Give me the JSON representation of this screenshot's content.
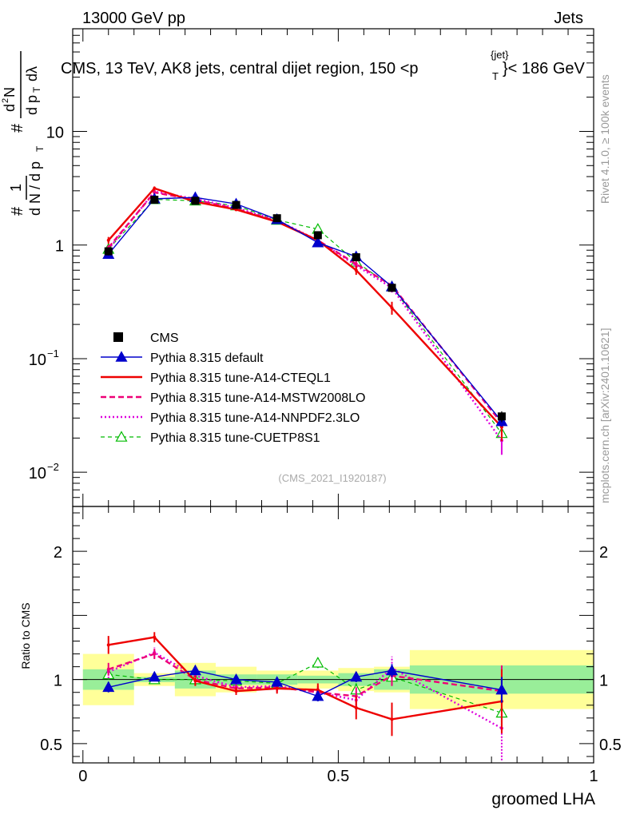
{
  "header": {
    "energy_label": "13000 GeV pp",
    "category_label": "Jets",
    "title_main": "CMS, 13 TeV, AK8 jets, central dijet region, 150 <p",
    "title_sup": "{jet}",
    "title_sub": "T",
    "title_tail": "}< 186 GeV",
    "side_label_top": "Rivet 4.1.0, ≥ 100k events",
    "side_label_bottom": "mcplots.cern.ch [arXiv:2401.10621]",
    "analysis_id": "(CMS_2021_I1920187)"
  },
  "colors": {
    "data": "#000000",
    "default": "#0000cc",
    "cteql1": "#ee0000",
    "mstw": "#ee0077",
    "nnpdf": "#dd00dd",
    "cuetp": "#00bb00",
    "band_inner": "#99ee99",
    "band_outer": "#ffff99"
  },
  "chart_data": {
    "type": "line",
    "xlabel": "groomed LHA",
    "ylabel_main": "1/(dN/dp_T) d^2N/(dp_T dλ)",
    "ylabel_ratio": "Ratio to CMS",
    "xlim": [
      -0.02,
      1.0
    ],
    "ylim_main": [
      0.005,
      80
    ],
    "ylim_ratio": [
      0.35,
      2.35
    ],
    "yscale_main": "log",
    "x_ticks": [
      0,
      0.5,
      1
    ],
    "x_tick_labels": [
      "0",
      "0.5",
      "1"
    ],
    "y_main_ticks": [
      {
        "v": 0.01,
        "base": "10",
        "exp": "−2"
      },
      {
        "v": 0.1,
        "base": "10",
        "exp": "−1"
      },
      {
        "v": 1,
        "base": "1",
        "exp": ""
      },
      {
        "v": 10,
        "base": "10",
        "exp": ""
      }
    ],
    "y_ratio_ticks": [
      0.5,
      1,
      2
    ],
    "y_ratio_tick_labels": [
      "0.5",
      "1",
      "2"
    ],
    "bin_edges": [
      0,
      0.1,
      0.18,
      0.26,
      0.34,
      0.42,
      0.5,
      0.57,
      0.64,
      1.0
    ],
    "x": [
      0.05,
      0.14,
      0.22,
      0.3,
      0.38,
      0.46,
      0.535,
      0.605,
      0.82
    ],
    "data": {
      "name": "CMS",
      "values": [
        0.88,
        2.5,
        2.45,
        2.25,
        1.72,
        1.22,
        0.78,
        0.42,
        0.031
      ],
      "band_inner": [
        0.08,
        0.02,
        0.07,
        0.04,
        0.04,
        0.03,
        0.05,
        0.08,
        0.11
      ],
      "band_outer": [
        0.2,
        0.05,
        0.13,
        0.1,
        0.07,
        0.07,
        0.09,
        0.1,
        0.23
      ]
    },
    "series": [
      {
        "name": "Pythia 8.315 default",
        "key": "default",
        "values": [
          0.83,
          2.55,
          2.62,
          2.3,
          1.68,
          1.05,
          0.79,
          0.43,
          0.028
        ],
        "ratio": [
          0.94,
          1.02,
          1.07,
          1.0,
          0.98,
          0.87,
          1.02,
          1.07,
          0.92
        ],
        "ratio_err": [
          0.04,
          0.03,
          0.03,
          0.03,
          0.03,
          0.04,
          0.04,
          0.05,
          0.1
        ]
      },
      {
        "name": "Pythia 8.315 tune-A14-CTEQL1",
        "key": "cteql1",
        "values": [
          1.1,
          3.15,
          2.4,
          2.05,
          1.6,
          1.1,
          0.6,
          0.28,
          0.025
        ],
        "ratio": [
          1.27,
          1.33,
          0.99,
          0.91,
          0.93,
          0.92,
          0.78,
          0.69,
          0.83
        ],
        "ratio_err": [
          0.07,
          0.04,
          0.04,
          0.03,
          0.04,
          0.05,
          0.09,
          0.13,
          0.25
        ]
      },
      {
        "name": "Pythia 8.315 tune-A14-MSTW2008LO",
        "key": "mstw",
        "values": [
          0.95,
          2.9,
          2.5,
          2.08,
          1.62,
          1.1,
          0.68,
          0.44,
          0.027
        ],
        "ratio": [
          1.08,
          1.2,
          1.0,
          0.93,
          0.94,
          0.9,
          0.87,
          1.03,
          0.91
        ],
        "ratio_err": [
          0.05,
          0.04,
          0.04,
          0.03,
          0.04,
          0.05,
          0.07,
          0.08,
          0.2
        ]
      },
      {
        "name": "Pythia 8.315 tune-A14-NNPDF2.3LO",
        "key": "nnpdf",
        "values": [
          0.92,
          2.95,
          2.55,
          2.12,
          1.65,
          1.1,
          0.66,
          0.42,
          0.019
        ],
        "ratio": [
          1.06,
          1.21,
          1.03,
          0.94,
          0.95,
          0.9,
          0.84,
          1.09,
          0.62
        ],
        "ratio_err": [
          0.05,
          0.04,
          0.04,
          0.03,
          0.04,
          0.05,
          0.07,
          0.09,
          0.25
        ]
      },
      {
        "name": "Pythia 8.315 tune-CUETP8S1",
        "key": "cuetp",
        "values": [
          0.92,
          2.52,
          2.45,
          2.22,
          1.66,
          1.38,
          0.71,
          0.43,
          0.022
        ],
        "ratio": [
          1.04,
          1.0,
          1.0,
          0.99,
          0.97,
          1.13,
          0.92,
          1.02,
          0.74
        ],
        "ratio_err": [
          0.04,
          0.03,
          0.03,
          0.03,
          0.03,
          0.04,
          0.05,
          0.06,
          0.12
        ]
      }
    ],
    "legend": [
      "CMS",
      "Pythia 8.315 default",
      "Pythia 8.315 tune-A14-CTEQL1",
      "Pythia 8.315 tune-A14-MSTW2008LO",
      "Pythia 8.315 tune-A14-NNPDF2.3LO",
      "Pythia 8.315 tune-CUETP8S1"
    ],
    "legend_position": "lower-left"
  }
}
